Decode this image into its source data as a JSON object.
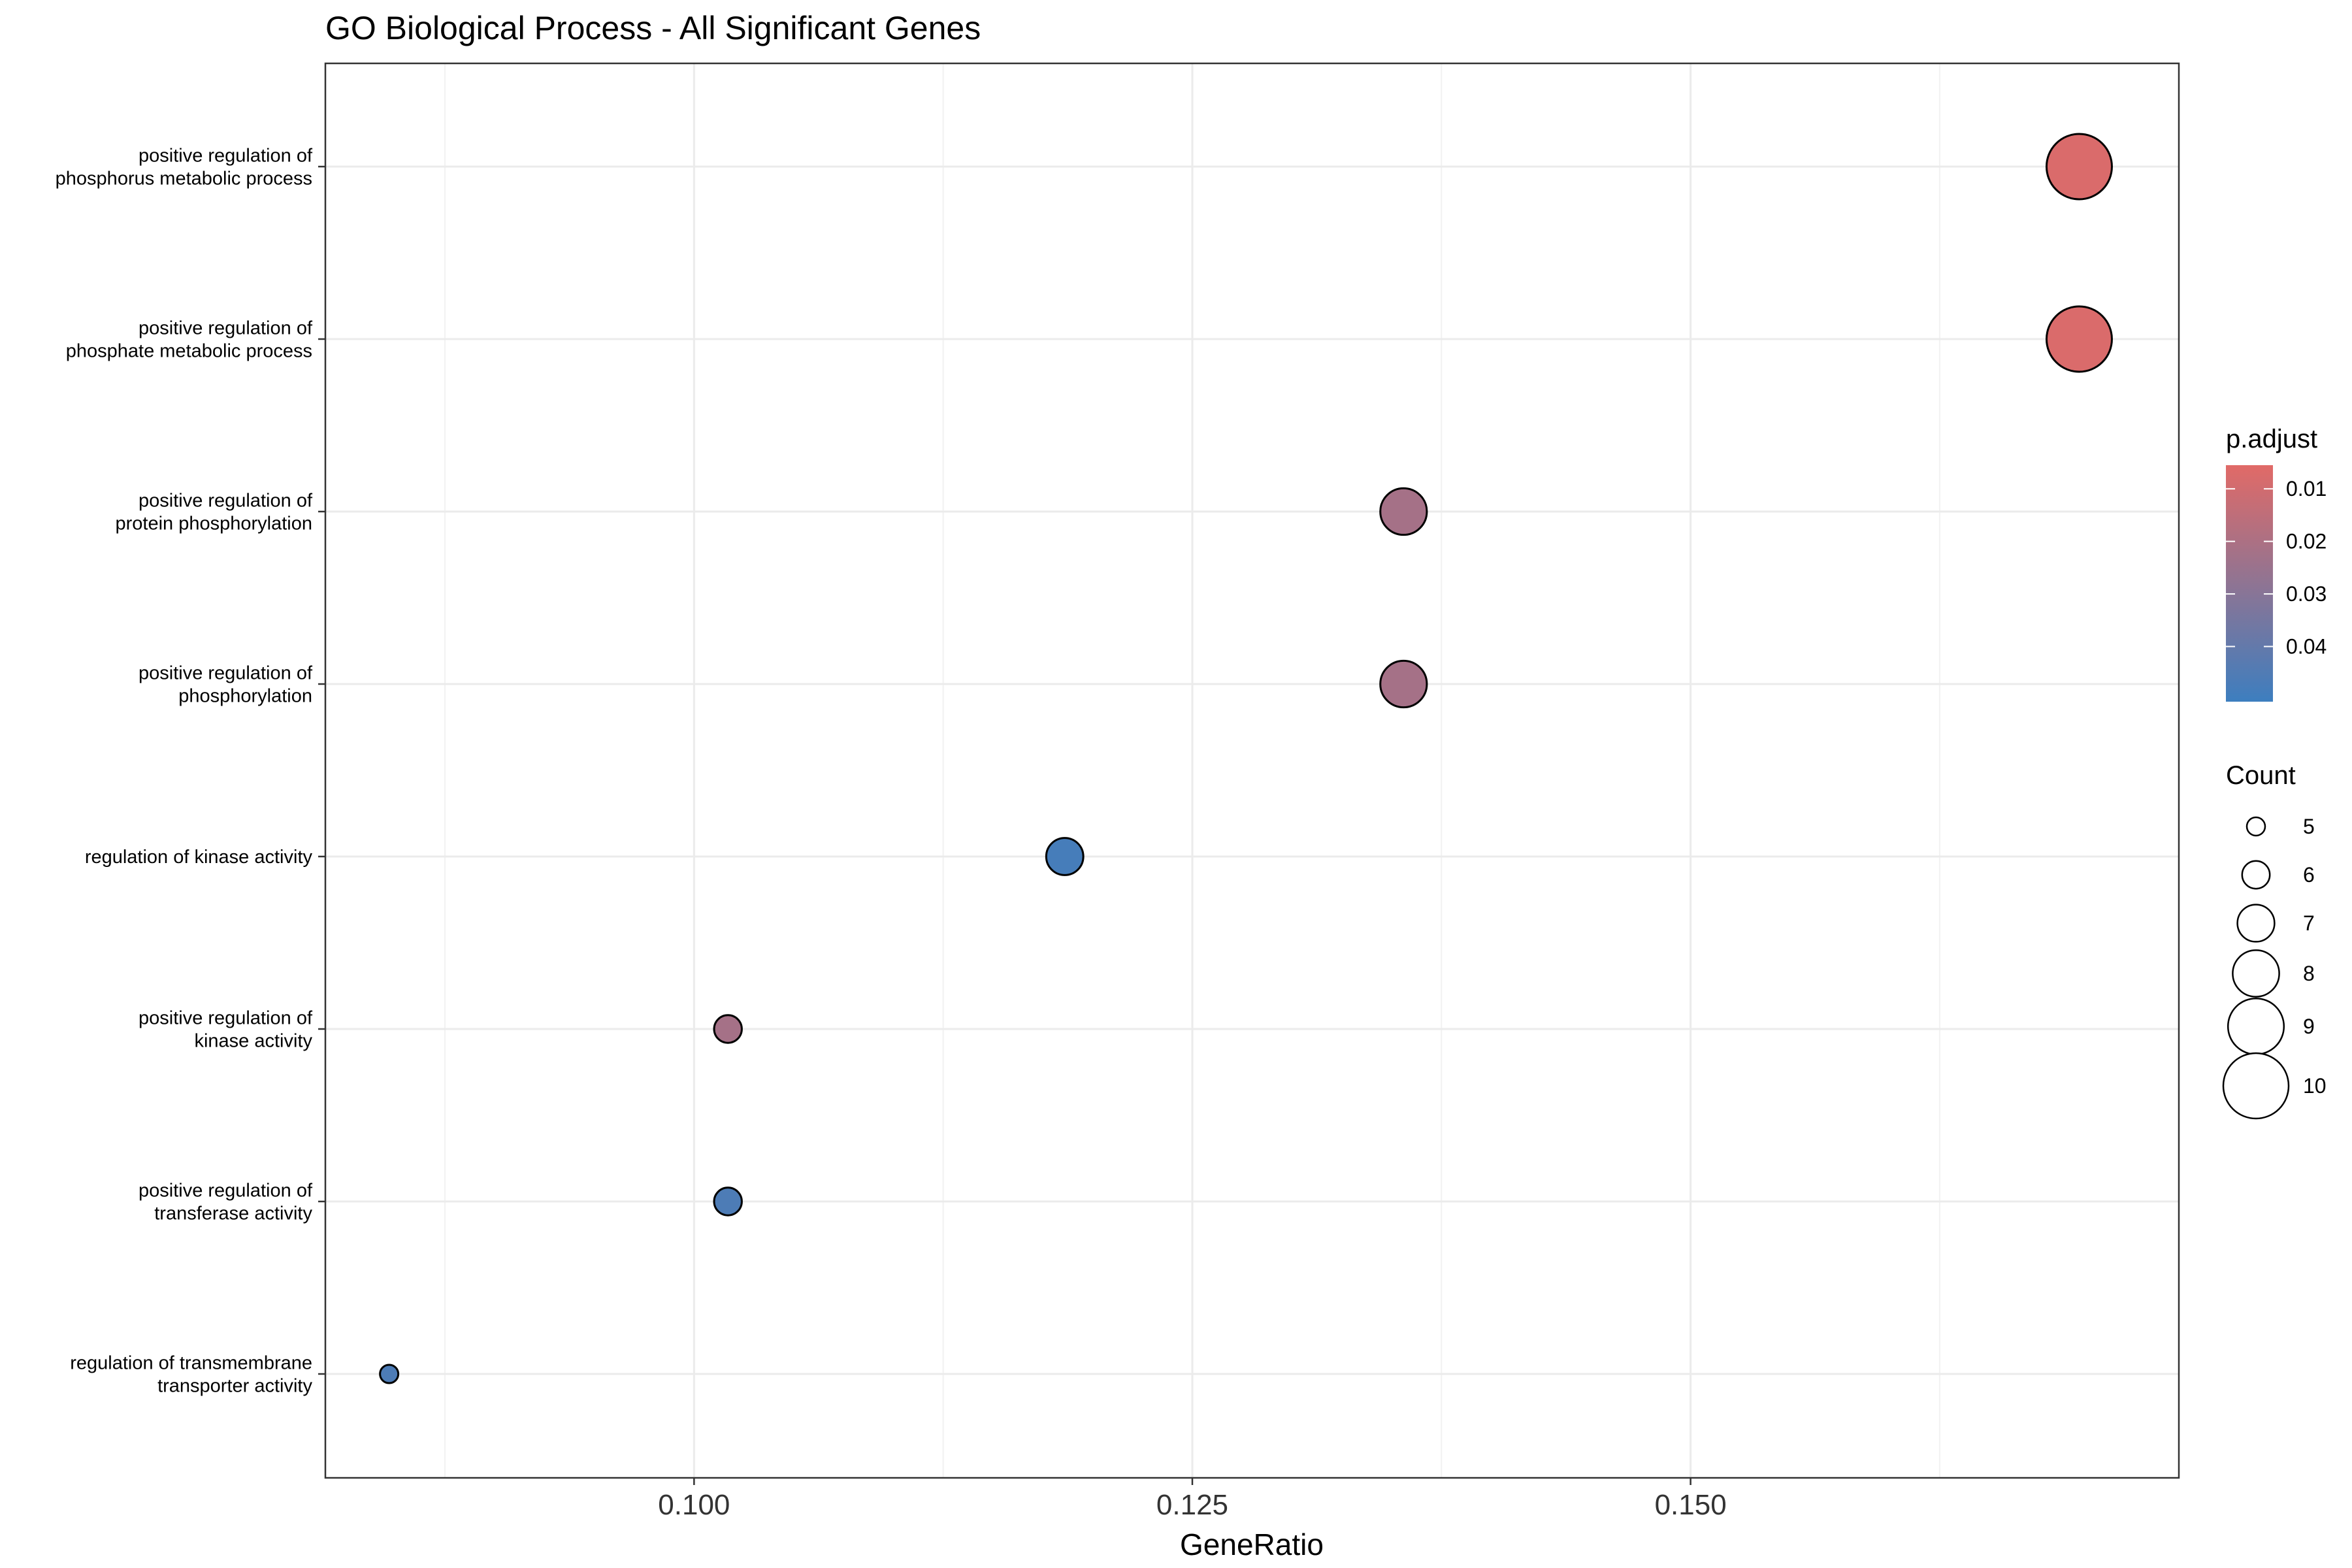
{
  "chart_data": {
    "type": "scatter",
    "title": "GO Biological Process - All Significant Genes",
    "xlabel": "GeneRatio",
    "ylabel": "",
    "xlim": [
      0.0815,
      0.1745
    ],
    "x_ticks": [
      "0.100",
      "0.125",
      "0.150"
    ],
    "x_tick_values": [
      0.1,
      0.125,
      0.15
    ],
    "grid": true,
    "categories": [
      [
        "positive regulation of",
        "phosphorus metabolic process"
      ],
      [
        "positive regulation of",
        "phosphate metabolic process"
      ],
      [
        "positive regulation of",
        "protein phosphorylation"
      ],
      [
        "positive regulation of",
        "phosphorylation"
      ],
      [
        "regulation of kinase activity"
      ],
      [
        "positive regulation of",
        "kinase activity"
      ],
      [
        "positive regulation of",
        "transferase activity"
      ],
      [
        "regulation of transmembrane",
        "transporter activity"
      ]
    ],
    "points": [
      {
        "x": 0.1695,
        "count": 10,
        "p_adjust": 0.0075
      },
      {
        "x": 0.1695,
        "count": 10,
        "p_adjust": 0.0075
      },
      {
        "x": 0.1356,
        "count": 8,
        "p_adjust": 0.022
      },
      {
        "x": 0.1356,
        "count": 8,
        "p_adjust": 0.022
      },
      {
        "x": 0.1186,
        "count": 7,
        "p_adjust": 0.048
      },
      {
        "x": 0.1017,
        "count": 6,
        "p_adjust": 0.022
      },
      {
        "x": 0.1017,
        "count": 6,
        "p_adjust": 0.046
      },
      {
        "x": 0.0847,
        "count": 5,
        "p_adjust": 0.046
      }
    ],
    "color_legend": {
      "title": "p.adjust",
      "position": "right",
      "range": [
        0.0055,
        0.0505
      ],
      "low_color": "#E16A67",
      "high_color": "#3D7EBF",
      "ticks": [
        "0.01",
        "0.02",
        "0.03",
        "0.04"
      ],
      "tick_values": [
        0.01,
        0.02,
        0.03,
        0.04
      ]
    },
    "size_legend": {
      "title": "Count",
      "position": "right",
      "values": [
        5,
        6,
        7,
        8,
        9,
        10
      ],
      "labels": [
        "5",
        "6",
        "7",
        "8",
        "9",
        "10"
      ]
    }
  }
}
